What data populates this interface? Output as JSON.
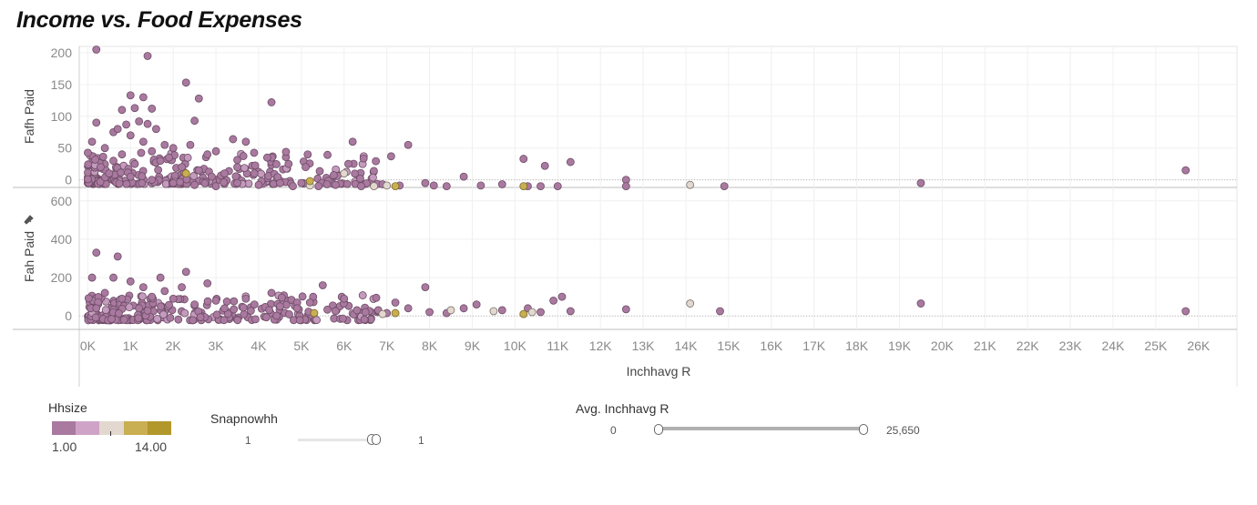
{
  "title": "Income vs. Food Expenses",
  "chart_data": {
    "type": "scatter",
    "xlabel": "Inchhavg R",
    "xlim": [
      -200,
      26900
    ],
    "x_ticks": [
      "0K",
      "1K",
      "2K",
      "3K",
      "4K",
      "5K",
      "6K",
      "7K",
      "8K",
      "9K",
      "10K",
      "11K",
      "12K",
      "13K",
      "14K",
      "15K",
      "16K",
      "17K",
      "18K",
      "19K",
      "20K",
      "21K",
      "22K",
      "23K",
      "24K",
      "25K",
      "26K"
    ],
    "x_tick_values": [
      0,
      1000,
      2000,
      3000,
      4000,
      5000,
      6000,
      7000,
      8000,
      9000,
      10000,
      11000,
      12000,
      13000,
      14000,
      15000,
      16000,
      17000,
      18000,
      19000,
      20000,
      21000,
      22000,
      23000,
      24000,
      25000,
      26000
    ],
    "color_by": "Hhsize",
    "colors": {
      "pink": "#a9799f",
      "lightpink": "#cfa3c8",
      "beige": "#e2d8cf",
      "gold": "#c9ae52",
      "darkgold": "#b2972b"
    },
    "panels": [
      {
        "ylabel": "Fafh Paid",
        "ylim": [
          -12,
          210
        ],
        "y_ticks": [
          0,
          50,
          100,
          150,
          200
        ],
        "points": [
          {
            "x": 200,
            "y": 205
          },
          {
            "x": 1400,
            "y": 195
          },
          {
            "x": 2300,
            "y": 153
          },
          {
            "x": 1000,
            "y": 133
          },
          {
            "x": 1300,
            "y": 130
          },
          {
            "x": 2600,
            "y": 128
          },
          {
            "x": 4300,
            "y": 122
          },
          {
            "x": 800,
            "y": 110
          },
          {
            "x": 1100,
            "y": 113
          },
          {
            "x": 1500,
            "y": 112
          },
          {
            "x": 2500,
            "y": 93
          },
          {
            "x": 200,
            "y": 90
          },
          {
            "x": 900,
            "y": 87
          },
          {
            "x": 1200,
            "y": 92
          },
          {
            "x": 1400,
            "y": 88
          },
          {
            "x": 1600,
            "y": 80
          },
          {
            "x": 600,
            "y": 75
          },
          {
            "x": 700,
            "y": 80
          },
          {
            "x": 1000,
            "y": 70
          },
          {
            "x": 3400,
            "y": 64
          },
          {
            "x": 3700,
            "y": 60
          },
          {
            "x": 6200,
            "y": 60
          },
          {
            "x": 7500,
            "y": 55
          },
          {
            "x": 1800,
            "y": 55
          },
          {
            "x": 2400,
            "y": 55
          },
          {
            "x": 2000,
            "y": 50
          },
          {
            "x": 400,
            "y": 50
          },
          {
            "x": 1500,
            "y": 45
          },
          {
            "x": 3000,
            "y": 45
          },
          {
            "x": 2800,
            "y": 40
          },
          {
            "x": 7100,
            "y": 37
          },
          {
            "x": 10200,
            "y": 33
          },
          {
            "x": 11300,
            "y": 28
          },
          {
            "x": 10700,
            "y": 22
          },
          {
            "x": 6100,
            "y": 25
          },
          {
            "x": 4200,
            "y": 35
          },
          {
            "x": 4700,
            "y": 25
          },
          {
            "x": 5100,
            "y": 20
          },
          {
            "x": 3500,
            "y": 20
          },
          {
            "x": 8800,
            "y": 5
          },
          {
            "x": 12600,
            "y": 0
          },
          {
            "x": 25700,
            "y": 15
          },
          {
            "x": 19500,
            "y": -5
          },
          {
            "x": 14900,
            "y": -10
          },
          {
            "x": 9700,
            "y": -7
          },
          {
            "x": 10600,
            "y": -10
          },
          {
            "x": 8400,
            "y": -10
          },
          {
            "x": 7900,
            "y": -5
          },
          {
            "x": 6900,
            "y": -7
          },
          {
            "x": 6400,
            "y": -10
          },
          {
            "x": 5800,
            "y": -8
          },
          {
            "x": 5400,
            "y": -10
          },
          {
            "x": 5000,
            "y": -5
          },
          {
            "x": 3200,
            "y": 10
          },
          {
            "x": 2600,
            "y": 15
          },
          {
            "x": 2200,
            "y": 20
          },
          {
            "x": 1700,
            "y": 30
          },
          {
            "x": 1100,
            "y": 25
          },
          {
            "x": 600,
            "y": 30
          },
          {
            "x": 300,
            "y": 20
          },
          {
            "x": 800,
            "y": 40
          },
          {
            "x": 1300,
            "y": 60
          },
          {
            "x": 1900,
            "y": 35
          },
          {
            "x": 2900,
            "y": 5
          },
          {
            "x": 3900,
            "y": 10
          },
          {
            "x": 4500,
            "y": -5
          },
          {
            "x": 5600,
            "y": -7
          },
          {
            "x": 100,
            "y": 60
          },
          {
            "x": 500,
            "y": 10
          },
          {
            "x": 1000,
            "y": 5
          },
          {
            "x": 1500,
            "y": 0
          },
          {
            "x": 2000,
            "y": -5
          },
          {
            "x": 2500,
            "y": -8
          },
          {
            "x": 3000,
            "y": -10
          },
          {
            "x": 3500,
            "y": -5
          },
          {
            "x": 4000,
            "y": -8
          },
          {
            "x": 4800,
            "y": -10
          },
          {
            "x": 7300,
            "y": -9
          },
          {
            "x": 9200,
            "y": -9
          },
          {
            "x": 11000,
            "y": -10
          },
          {
            "x": 12600,
            "y": -10
          },
          {
            "x": 10300,
            "y": -10
          },
          {
            "x": 8100,
            "y": -9
          }
        ],
        "light_points": [
          {
            "x": 6000,
            "y": 10
          },
          {
            "x": 14100,
            "y": -8
          },
          {
            "x": 7000,
            "y": -9
          },
          {
            "x": 6700,
            "y": -10
          },
          {
            "x": 5200,
            "y": -9
          }
        ],
        "gold_points": [
          {
            "x": 10200,
            "y": -10
          },
          {
            "x": 7200,
            "y": -10
          },
          {
            "x": 2300,
            "y": 10
          },
          {
            "x": 5200,
            "y": -2
          }
        ]
      },
      {
        "ylabel": "Fah Paid",
        "ylim": [
          -70,
          670
        ],
        "y_ticks": [
          0,
          200,
          400,
          600
        ],
        "points": [
          {
            "x": 200,
            "y": 330
          },
          {
            "x": 700,
            "y": 310
          },
          {
            "x": 2300,
            "y": 230
          },
          {
            "x": 1700,
            "y": 200
          },
          {
            "x": 1000,
            "y": 180
          },
          {
            "x": 2800,
            "y": 170
          },
          {
            "x": 7900,
            "y": 150
          },
          {
            "x": 5500,
            "y": 160
          },
          {
            "x": 4300,
            "y": 120
          },
          {
            "x": 1300,
            "y": 150
          },
          {
            "x": 11100,
            "y": 100
          },
          {
            "x": 10900,
            "y": 80
          },
          {
            "x": 9100,
            "y": 60
          },
          {
            "x": 7200,
            "y": 70
          },
          {
            "x": 6000,
            "y": 90
          },
          {
            "x": 5200,
            "y": 70
          },
          {
            "x": 3700,
            "y": 90
          },
          {
            "x": 3000,
            "y": 80
          },
          {
            "x": 400,
            "y": 120
          },
          {
            "x": 600,
            "y": 200
          },
          {
            "x": 1500,
            "y": 100
          },
          {
            "x": 2000,
            "y": 90
          },
          {
            "x": 2500,
            "y": 60
          },
          {
            "x": 4500,
            "y": 50
          },
          {
            "x": 6300,
            "y": 30
          },
          {
            "x": 8800,
            "y": 40
          },
          {
            "x": 10300,
            "y": 40
          },
          {
            "x": 9700,
            "y": 30
          },
          {
            "x": 11300,
            "y": 25
          },
          {
            "x": 12600,
            "y": 35
          },
          {
            "x": 14800,
            "y": 25
          },
          {
            "x": 19500,
            "y": 65
          },
          {
            "x": 25700,
            "y": 25
          },
          {
            "x": 7500,
            "y": 40
          },
          {
            "x": 6800,
            "y": 30
          },
          {
            "x": 5800,
            "y": 25
          },
          {
            "x": 8000,
            "y": 20
          },
          {
            "x": 8400,
            "y": 15
          },
          {
            "x": 10600,
            "y": 20
          },
          {
            "x": 3200,
            "y": 40
          },
          {
            "x": 1200,
            "y": 40
          },
          {
            "x": 200,
            "y": 40
          },
          {
            "x": 800,
            "y": 90
          },
          {
            "x": 1800,
            "y": 130
          },
          {
            "x": 2200,
            "y": 150
          },
          {
            "x": 3900,
            "y": 60
          },
          {
            "x": 4900,
            "y": 40
          },
          {
            "x": 6500,
            "y": 20
          },
          {
            "x": 7000,
            "y": 15
          },
          {
            "x": 100,
            "y": 200
          }
        ],
        "light_points": [
          {
            "x": 14100,
            "y": 65
          },
          {
            "x": 10400,
            "y": 20
          },
          {
            "x": 9500,
            "y": 25
          },
          {
            "x": 8500,
            "y": 30
          },
          {
            "x": 6900,
            "y": 10
          }
        ],
        "gold_points": [
          {
            "x": 10200,
            "y": 10
          },
          {
            "x": 7200,
            "y": 15
          },
          {
            "x": 5300,
            "y": 15
          }
        ]
      }
    ]
  },
  "legend": {
    "hhsize_title": "Hhsize",
    "hhsize_min": "1.00",
    "hhsize_max": "14.00",
    "snap_title": "Snapnowhh",
    "snap_min": "1",
    "snap_max": "1",
    "avg_title": "Avg. Inchhavg R",
    "avg_min": "0",
    "avg_max": "25,650"
  }
}
